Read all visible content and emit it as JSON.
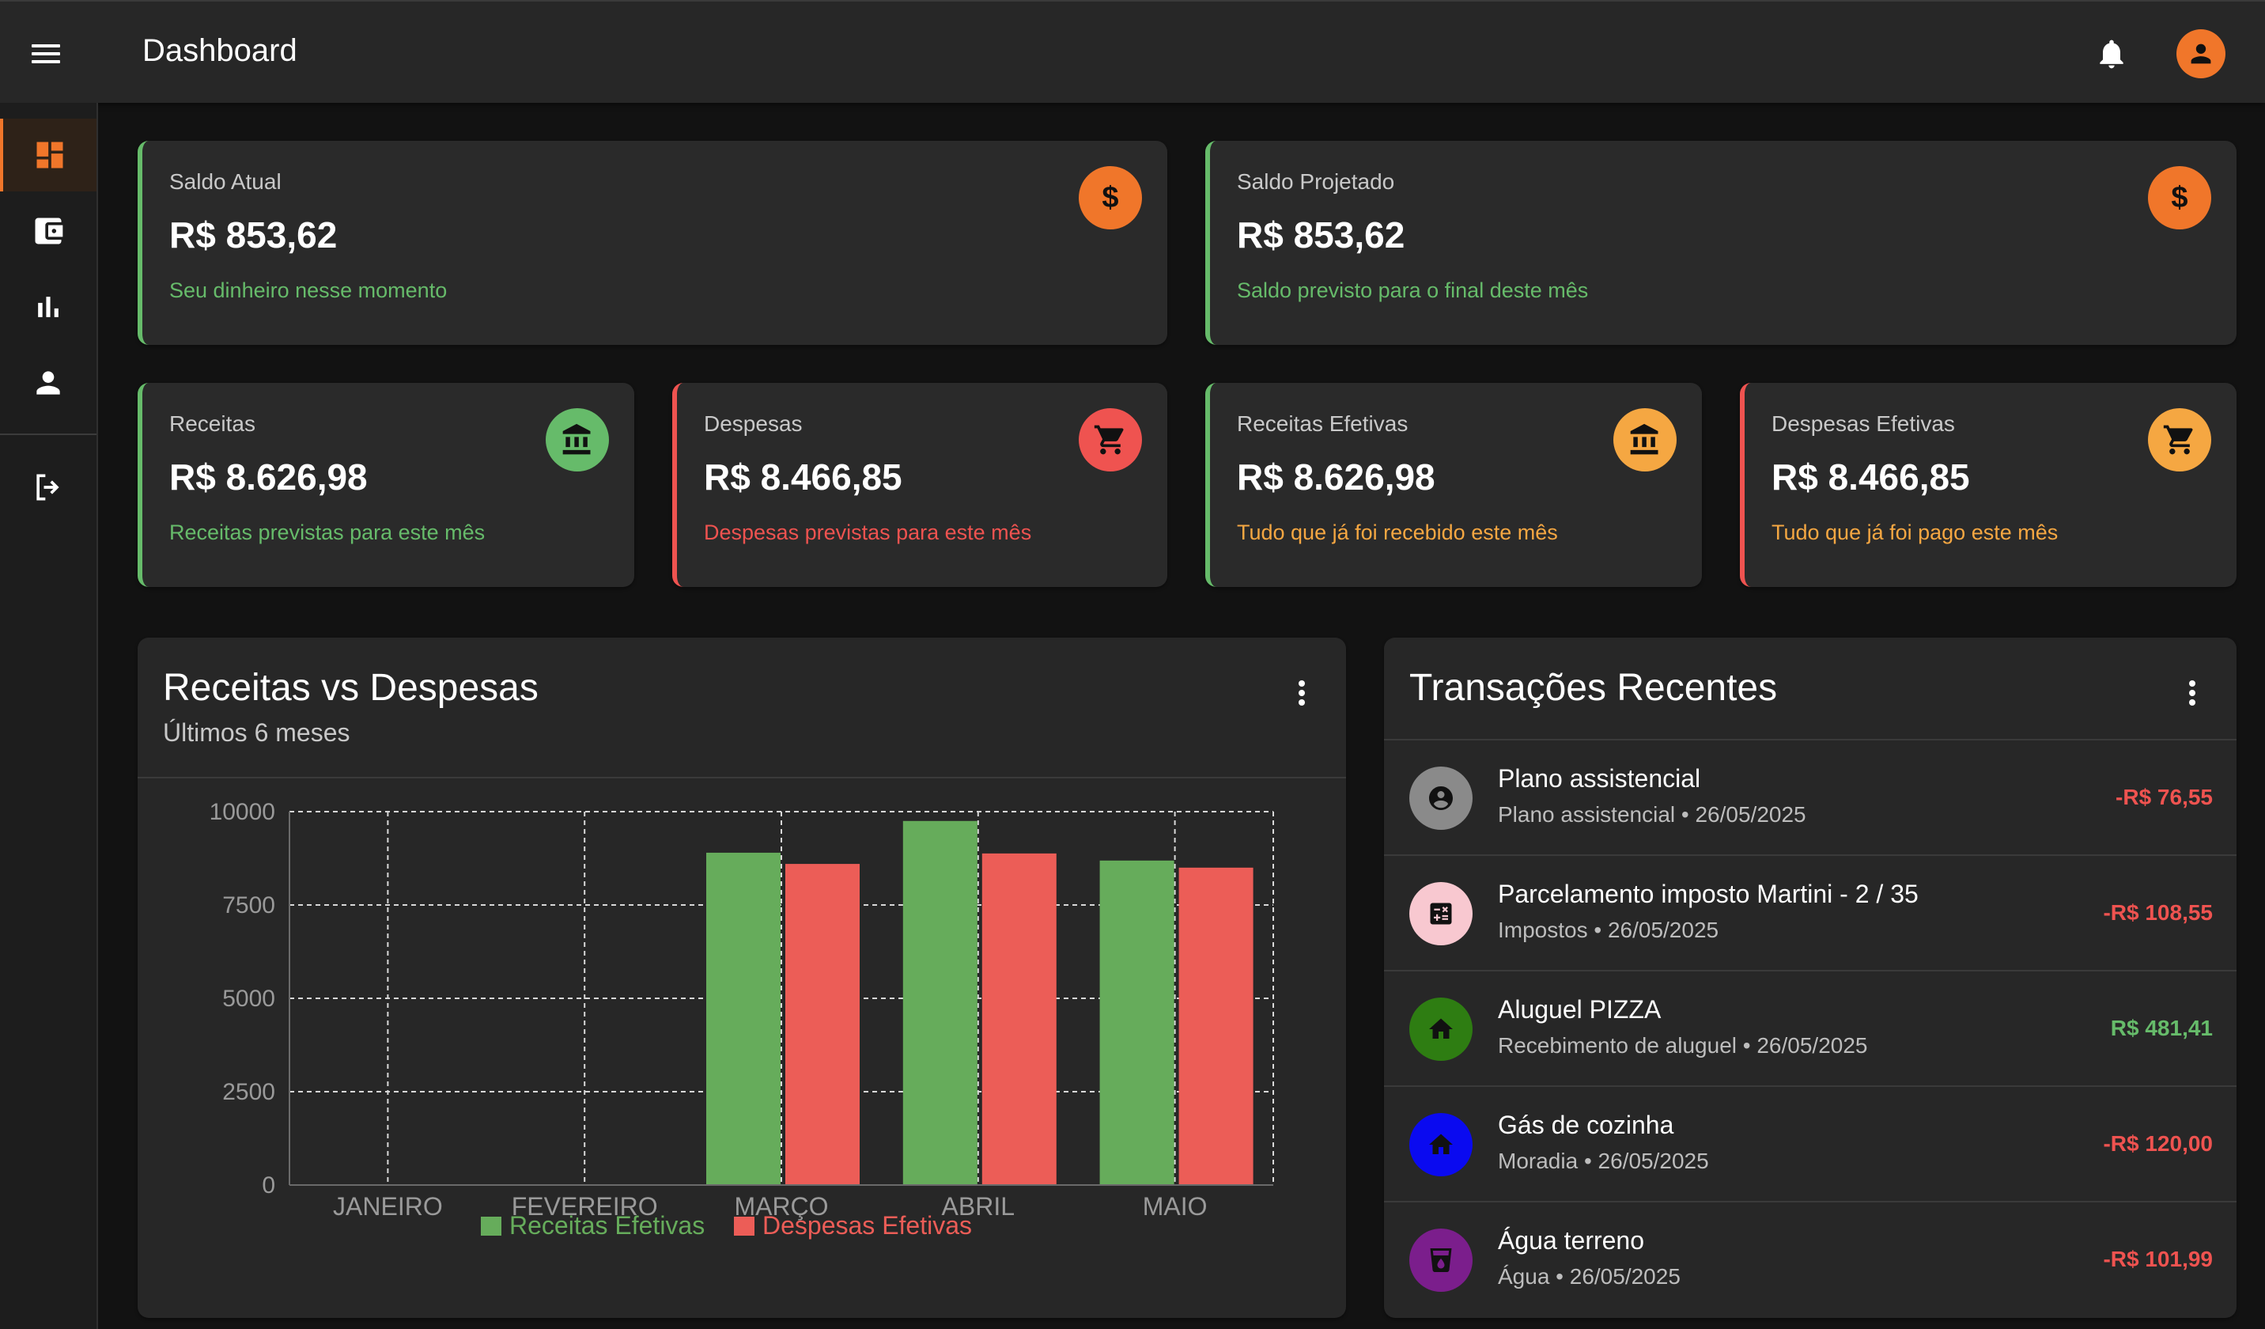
{
  "header": {
    "title": "Dashboard"
  },
  "colors": {
    "accent": "#f0762a",
    "green": "#66bb6a",
    "red": "#ef5350",
    "orange": "#f5a742"
  },
  "cards_top": [
    {
      "label": "Saldo Atual",
      "value": "R$ 853,62",
      "sub": "Seu dinheiro nesse momento",
      "icon": "dollar-icon"
    },
    {
      "label": "Saldo Projetado",
      "value": "R$ 853,62",
      "sub": "Saldo previsto para o final deste mês",
      "icon": "dollar-icon"
    }
  ],
  "cards_mid": [
    {
      "label": "Receitas",
      "value": "R$ 8.626,98",
      "sub": "Receitas previstas para este mês",
      "icon": "bank-icon"
    },
    {
      "label": "Despesas",
      "value": "R$ 8.466,85",
      "sub": "Despesas previstas para este mês",
      "icon": "cart-icon"
    },
    {
      "label": "Receitas Efetivas",
      "value": "R$ 8.626,98",
      "sub": "Tudo que já foi recebido este mês",
      "icon": "bank-icon"
    },
    {
      "label": "Despesas Efetivas",
      "value": "R$ 8.466,85",
      "sub": "Tudo que já foi pago este mês",
      "icon": "cart-icon"
    }
  ],
  "chart_panel": {
    "title": "Receitas vs Despesas",
    "subtitle": "Últimos 6 meses"
  },
  "chart_data": {
    "type": "bar",
    "title": "Receitas vs Despesas",
    "categories": [
      "JANEIRO",
      "FEVEREIRO",
      "MARÇO",
      "ABRIL",
      "MAIO"
    ],
    "series": [
      {
        "name": "Receitas Efetivas",
        "values": [
          0,
          0,
          8900,
          9750,
          8690
        ],
        "color": "#66ac5b"
      },
      {
        "name": "Despesas Efetivas",
        "values": [
          0,
          0,
          8600,
          8880,
          8500
        ],
        "color": "#ec5d57"
      }
    ],
    "ylim": [
      0,
      10000
    ],
    "yticks": [
      "0",
      "2500",
      "5000",
      "7500",
      "10000"
    ],
    "grid": true,
    "legend": "bottom"
  },
  "transactions": {
    "title": "Transações Recentes",
    "items": [
      {
        "name": "Plano assistencial",
        "meta": "Plano assistencial • 26/05/2025",
        "amount": "-R$ 76,55",
        "icon": "person-circle-icon",
        "icon_bg": "#8a8a8a",
        "amount_color": "#ef5350"
      },
      {
        "name": "Parcelamento imposto Martini - 2 / 35",
        "meta": "Impostos • 26/05/2025",
        "amount": "-R$ 108,55",
        "icon": "calculator-icon",
        "icon_bg": "#f8c8d0",
        "amount_color": "#ef5350"
      },
      {
        "name": "Aluguel PIZZA",
        "meta": "Recebimento de aluguel • 26/05/2025",
        "amount": "R$ 481,41",
        "icon": "home-icon",
        "icon_bg": "#2e7d12",
        "amount_color": "#66bb6a"
      },
      {
        "name": "Gás de cozinha",
        "meta": "Moradia • 26/05/2025",
        "amount": "-R$ 120,00",
        "icon": "home-icon",
        "icon_bg": "#0a0af0",
        "amount_color": "#ef5350"
      },
      {
        "name": "Água terreno",
        "meta": "Água • 26/05/2025",
        "amount": "-R$ 101,99",
        "icon": "water-glass-icon",
        "icon_bg": "#7b1e8c",
        "amount_color": "#ef5350"
      }
    ]
  }
}
